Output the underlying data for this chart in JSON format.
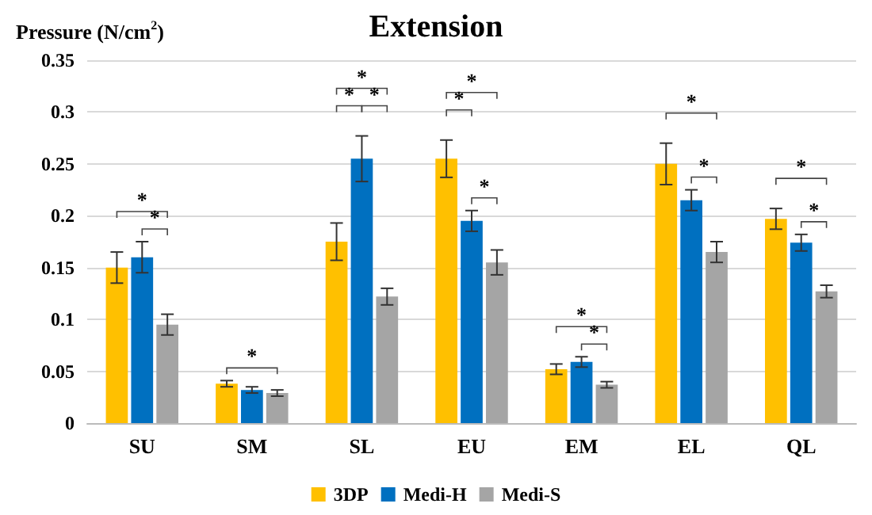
{
  "chart_data": {
    "type": "bar",
    "title": "Extension",
    "ylabel": "Pressure (N/cm$^{2}$)",
    "categories": [
      "SU",
      "SM",
      "SL",
      "EU",
      "EM",
      "EL",
      "QL"
    ],
    "series": [
      {
        "name": "3DP",
        "color": "#ffc000",
        "values": [
          0.15,
          0.038,
          0.175,
          0.255,
          0.052,
          0.25,
          0.197
        ],
        "errors": [
          0.015,
          0.003,
          0.018,
          0.018,
          0.005,
          0.02,
          0.01
        ]
      },
      {
        "name": "Medi-H",
        "color": "#0070c0",
        "values": [
          0.16,
          0.032,
          0.255,
          0.195,
          0.059,
          0.215,
          0.174
        ],
        "errors": [
          0.015,
          0.003,
          0.022,
          0.01,
          0.005,
          0.01,
          0.008
        ]
      },
      {
        "name": "Medi-S",
        "color": "#a5a5a5",
        "values": [
          0.095,
          0.029,
          0.122,
          0.155,
          0.037,
          0.165,
          0.127
        ],
        "errors": [
          0.01,
          0.003,
          0.008,
          0.012,
          0.003,
          0.01,
          0.006
        ]
      }
    ],
    "ylim": [
      0,
      0.35
    ],
    "yticks": [
      0,
      0.05,
      0.1,
      0.15,
      0.2,
      0.25,
      0.3,
      0.35
    ],
    "grid": "y",
    "legend": "bottom",
    "annotations": [
      "*",
      "*",
      "*",
      "*",
      "*",
      "*",
      "*",
      "*",
      "*",
      "*",
      "*",
      "*",
      "*",
      "*",
      "*"
    ]
  }
}
